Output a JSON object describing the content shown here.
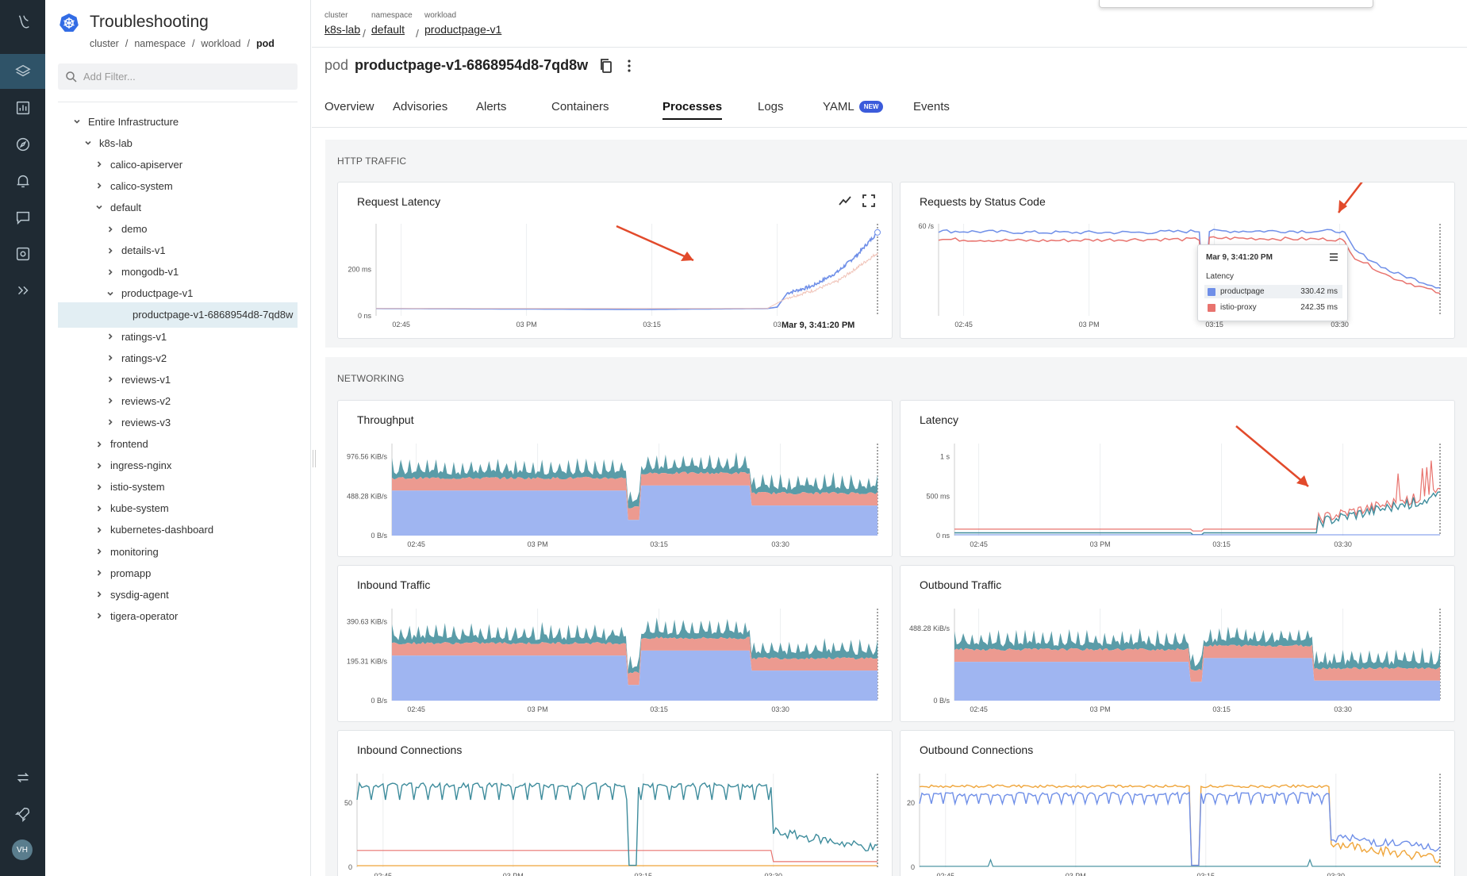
{
  "rail": {
    "icons": [
      "logo-icon",
      "layers-icon",
      "chart-icon",
      "compass-icon",
      "bell-icon",
      "chat-icon",
      "capture-icon",
      "expand-icon",
      "sync-icon",
      "rocket-icon"
    ],
    "avatar": "VH"
  },
  "tree": {
    "title": "Troubleshooting",
    "crumbs": [
      "cluster",
      "namespace",
      "workload",
      "pod"
    ],
    "filter_placeholder": "Add Filter...",
    "items": [
      {
        "label": "Entire Infrastructure",
        "depth": 0,
        "state": "open"
      },
      {
        "label": "k8s-lab",
        "depth": 1,
        "state": "open"
      },
      {
        "label": "calico-apiserver",
        "depth": 2,
        "state": "closed"
      },
      {
        "label": "calico-system",
        "depth": 2,
        "state": "closed"
      },
      {
        "label": "default",
        "depth": 2,
        "state": "open"
      },
      {
        "label": "demo",
        "depth": 3,
        "state": "closed"
      },
      {
        "label": "details-v1",
        "depth": 3,
        "state": "closed"
      },
      {
        "label": "mongodb-v1",
        "depth": 3,
        "state": "closed"
      },
      {
        "label": "productpage-v1",
        "depth": 3,
        "state": "open"
      },
      {
        "label": "productpage-v1-6868954d8-7qd8w",
        "depth": 4,
        "state": "leaf",
        "selected": true
      },
      {
        "label": "ratings-v1",
        "depth": 3,
        "state": "closed"
      },
      {
        "label": "ratings-v2",
        "depth": 3,
        "state": "closed"
      },
      {
        "label": "reviews-v1",
        "depth": 3,
        "state": "closed"
      },
      {
        "label": "reviews-v2",
        "depth": 3,
        "state": "closed"
      },
      {
        "label": "reviews-v3",
        "depth": 3,
        "state": "closed"
      },
      {
        "label": "frontend",
        "depth": 2,
        "state": "closed"
      },
      {
        "label": "ingress-nginx",
        "depth": 2,
        "state": "closed"
      },
      {
        "label": "istio-system",
        "depth": 2,
        "state": "closed"
      },
      {
        "label": "kube-system",
        "depth": 2,
        "state": "closed"
      },
      {
        "label": "kubernetes-dashboard",
        "depth": 2,
        "state": "closed"
      },
      {
        "label": "monitoring",
        "depth": 2,
        "state": "closed"
      },
      {
        "label": "promapp",
        "depth": 2,
        "state": "closed"
      },
      {
        "label": "sysdig-agent",
        "depth": 2,
        "state": "closed"
      },
      {
        "label": "tigera-operator",
        "depth": 2,
        "state": "closed"
      }
    ]
  },
  "header": {
    "crumbs": [
      {
        "label": "cluster",
        "value": "k8s-lab"
      },
      {
        "label": "namespace",
        "value": "default"
      },
      {
        "label": "workload",
        "value": "productpage-v1"
      }
    ],
    "pod_kind": "pod",
    "pod_name": "productpage-v1-6868954d8-7qd8w"
  },
  "tabs": [
    {
      "label": "Overview"
    },
    {
      "label": "Advisories"
    },
    {
      "label": "Alerts"
    },
    {
      "label": "Containers"
    },
    {
      "label": "Processes",
      "active": true
    },
    {
      "label": "Logs"
    },
    {
      "label": "YAML",
      "badge": "NEW"
    },
    {
      "label": "Events"
    }
  ],
  "sections": {
    "http": "HTTP TRAFFIC",
    "networking": "NETWORKING"
  },
  "colors": {
    "blue": "#6f8fe8",
    "red": "#e8736e",
    "teal": "#3e8c9c",
    "orange": "#efa53a",
    "fill_blue": "#9fb5f1",
    "fill_red": "#ec9a90",
    "fill_teal": "#5a9ca8"
  },
  "tooltip": {
    "time": "Mar 9, 3:41:20 PM",
    "category": "Latency",
    "rows": [
      {
        "name": "productpage",
        "value": "330.42 ms"
      },
      {
        "name": "istio-proxy",
        "value": "242.35 ms"
      }
    ],
    "hover_label": "Mar 9, 3:41:20 PM"
  },
  "chart_data": [
    {
      "type": "line",
      "title": "Request Latency",
      "x_ticks": [
        "02:45",
        "03 PM",
        "03:15",
        "03"
      ],
      "y_ticks": [
        "0 ns",
        "200 ms"
      ],
      "series": [
        {
          "name": "productpage",
          "color": "blue",
          "x": [
            0,
            0.53,
            0.78,
            0.8,
            0.82,
            0.87,
            0.92,
            0.96,
            1.0
          ],
          "y": [
            4,
            0,
            4,
            10,
            70,
            100,
            160,
            235,
            330
          ]
        },
        {
          "name": "istio-proxy",
          "color": "red",
          "x": [
            0,
            0.78,
            0.82,
            0.87,
            0.92,
            0.96,
            1.0
          ],
          "y": [
            4,
            4,
            50,
            80,
            120,
            180,
            242
          ]
        }
      ]
    },
    {
      "type": "line",
      "title": "Requests by Status Code",
      "x_ticks": [
        "02:45",
        "03 PM",
        "03:15",
        "03:30"
      ],
      "y_ticks": [
        "60 /s"
      ],
      "series": [
        {
          "name": "blue",
          "color": "blue",
          "x": [
            0,
            0.2,
            0.4,
            0.52,
            0.53,
            0.54,
            0.8,
            0.81,
            0.83,
            0.9,
            1.0
          ],
          "y": [
            59,
            58,
            58,
            59,
            5,
            59,
            59,
            57,
            45,
            30,
            18
          ]
        },
        {
          "name": "red",
          "color": "red",
          "x": [
            0,
            0.2,
            0.4,
            0.52,
            0.53,
            0.54,
            0.8,
            0.81,
            0.83,
            0.9,
            1.0
          ],
          "y": [
            53,
            52,
            53,
            53,
            2,
            54,
            53,
            51,
            40,
            26,
            14
          ]
        }
      ]
    },
    {
      "type": "area",
      "title": "Throughput",
      "x_ticks": [
        "02:45",
        "03 PM",
        "03:15",
        "03:30"
      ],
      "y_ticks": [
        "0 B/s",
        "488.28 KiB/s",
        "976.56 KiB/s"
      ]
    },
    {
      "type": "line",
      "title": "Latency",
      "x_ticks": [
        "02:45",
        "03 PM",
        "03:15",
        "03:30"
      ],
      "y_ticks": [
        "0 ns",
        "500 ms",
        "1 s"
      ]
    },
    {
      "type": "area",
      "title": "Inbound Traffic",
      "x_ticks": [
        "02:45",
        "03 PM",
        "03:15",
        "03:30"
      ],
      "y_ticks": [
        "0 B/s",
        "195.31 KiB/s",
        "390.63 KiB/s"
      ]
    },
    {
      "type": "area",
      "title": "Outbound Traffic",
      "x_ticks": [
        "02:45",
        "03 PM",
        "03:15",
        "03:30"
      ],
      "y_ticks": [
        "0 B/s",
        "488.28 KiB/s"
      ]
    },
    {
      "type": "line",
      "title": "Inbound Connections",
      "x_ticks": [
        "02:45",
        "03 PM",
        "03:15",
        "03:30"
      ],
      "y_ticks": [
        "0",
        "50"
      ]
    },
    {
      "type": "line",
      "title": "Outbound Connections",
      "x_ticks": [
        "02:45",
        "03 PM",
        "03:15",
        "03:30"
      ],
      "y_ticks": [
        "0",
        "20"
      ]
    }
  ]
}
